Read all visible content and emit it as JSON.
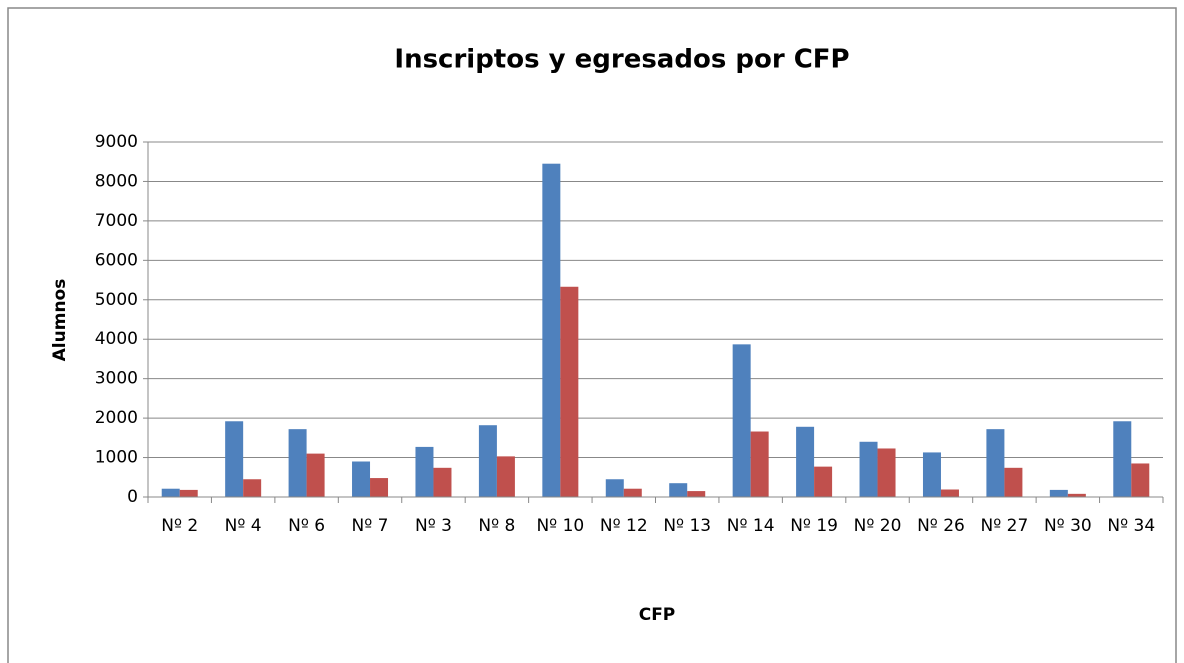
{
  "chart_data": {
    "type": "bar",
    "title": "Inscriptos y egresados por CFP",
    "x_label": "CFP",
    "y_label": "Alumnos",
    "categories": [
      "Nº 2",
      "Nº 4",
      "Nº 6",
      "Nº 7",
      "Nº 3",
      "Nº 8",
      "Nº 10",
      "Nº 12",
      "Nº 13",
      "Nº 14",
      "Nº 19",
      "Nº 20",
      "Nº 26",
      "Nº 27",
      "Nº 30",
      "Nº 34"
    ],
    "series": [
      {
        "color": "#4f81bd",
        "values": [
          210,
          1920,
          1720,
          900,
          1270,
          1820,
          8450,
          450,
          350,
          3870,
          1780,
          1400,
          1130,
          1720,
          180,
          1920
        ]
      },
      {
        "color": "#c0504d",
        "values": [
          180,
          450,
          1100,
          480,
          740,
          1030,
          5330,
          210,
          150,
          1660,
          770,
          1230,
          190,
          740,
          80,
          850
        ]
      }
    ],
    "ylim": [
      0,
      9000
    ],
    "yticks": [
      0,
      1000,
      2000,
      3000,
      4000,
      5000,
      6000,
      7000,
      8000,
      9000
    ],
    "grid": true
  }
}
